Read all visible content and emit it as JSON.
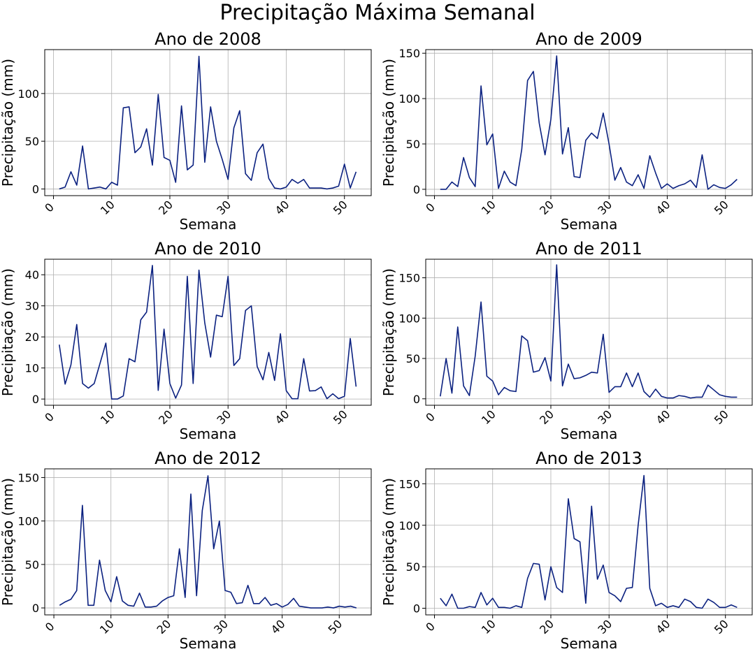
{
  "figure": {
    "title": "Precipitação Máxima Semanal"
  },
  "colors": {
    "line": "#0b2180",
    "grid": "#b0b0b0",
    "axes": "#000000"
  },
  "chart_data": [
    {
      "type": "line",
      "title": "Ano de 2008",
      "xlabel": "Semana",
      "ylabel": "Precipitação (mm)",
      "xlim": [
        -1.5,
        54.6
      ],
      "ylim": [
        -7,
        146
      ],
      "xticks": [
        0,
        10,
        20,
        30,
        40,
        50
      ],
      "yticks": [
        0,
        50,
        100
      ],
      "grid": true,
      "x": [
        1,
        2,
        3,
        4,
        5,
        6,
        7,
        8,
        9,
        10,
        11,
        12,
        13,
        14,
        15,
        16,
        17,
        18,
        19,
        20,
        21,
        22,
        23,
        24,
        25,
        26,
        27,
        28,
        29,
        30,
        31,
        32,
        33,
        34,
        35,
        36,
        37,
        38,
        39,
        40,
        41,
        42,
        43,
        44,
        45,
        46,
        47,
        48,
        49,
        50,
        51,
        52
      ],
      "values": [
        0,
        2,
        18,
        4,
        45,
        0,
        1,
        2,
        0,
        7,
        4,
        85,
        86,
        38,
        44,
        63,
        25,
        99,
        33,
        30,
        7,
        87,
        20,
        25,
        139,
        28,
        86,
        50,
        31,
        10,
        64,
        82,
        16,
        9,
        38,
        47,
        11,
        1,
        0,
        2,
        10,
        6,
        10,
        1,
        1,
        1,
        0,
        1,
        3,
        26,
        1,
        18
      ]
    },
    {
      "type": "line",
      "title": "Ano de 2009",
      "xlabel": "Semana",
      "ylabel": "Precipitação (mm)",
      "xlim": [
        -1.5,
        54.6
      ],
      "ylim": [
        -7,
        154
      ],
      "xticks": [
        0,
        10,
        20,
        30,
        40,
        50
      ],
      "yticks": [
        0,
        50,
        100,
        150
      ],
      "grid": true,
      "x": [
        1,
        2,
        3,
        4,
        5,
        6,
        7,
        8,
        9,
        10,
        11,
        12,
        13,
        14,
        15,
        16,
        17,
        18,
        19,
        20,
        21,
        22,
        23,
        24,
        25,
        26,
        27,
        28,
        29,
        30,
        31,
        32,
        33,
        34,
        35,
        36,
        37,
        38,
        39,
        40,
        41,
        42,
        43,
        44,
        45,
        46,
        47,
        48,
        49,
        50,
        51,
        52
      ],
      "values": [
        0,
        0,
        8,
        3,
        35,
        13,
        3,
        114,
        49,
        61,
        1,
        20,
        8,
        4,
        44,
        120,
        130,
        73,
        38,
        77,
        147,
        39,
        68,
        14,
        13,
        54,
        62,
        56,
        84,
        50,
        10,
        24,
        8,
        4,
        16,
        1,
        37,
        18,
        1,
        6,
        1,
        4,
        6,
        10,
        2,
        38,
        0,
        5,
        2,
        1,
        5,
        11
      ]
    },
    {
      "type": "line",
      "title": "Ano de 2010",
      "xlabel": "Semana",
      "ylabel": "Precipitação (mm)",
      "xlim": [
        -1.5,
        54.6
      ],
      "ylim": [
        -2,
        45
      ],
      "xticks": [
        0,
        10,
        20,
        30,
        40,
        50
      ],
      "yticks": [
        0,
        10,
        20,
        30,
        40
      ],
      "grid": true,
      "x": [
        1,
        2,
        3,
        4,
        5,
        6,
        7,
        8,
        9,
        10,
        11,
        12,
        13,
        14,
        15,
        16,
        17,
        18,
        19,
        20,
        21,
        22,
        23,
        24,
        25,
        26,
        27,
        28,
        29,
        30,
        31,
        32,
        33,
        34,
        35,
        36,
        37,
        38,
        39,
        40,
        41,
        42,
        43,
        44,
        45,
        46,
        47,
        48,
        49,
        50,
        51,
        52
      ],
      "values": [
        17.5,
        4.8,
        11,
        24,
        5,
        3.5,
        5,
        11.5,
        18,
        0,
        0,
        1,
        13,
        12,
        25.5,
        28,
        43,
        2.8,
        22.5,
        5,
        0.3,
        4.5,
        39.5,
        5,
        41.5,
        24.5,
        13.5,
        27,
        26.5,
        39.5,
        10.8,
        13,
        28.5,
        30,
        10.5,
        6.2,
        15,
        6,
        21,
        2.7,
        0.1,
        0.1,
        13,
        2.6,
        2.7,
        3.9,
        0.1,
        1.7,
        0.1,
        0.9,
        19.5,
        4
      ]
    },
    {
      "type": "line",
      "title": "Ano de 2011",
      "xlabel": "Semana",
      "ylabel": "Precipitação (mm)",
      "xlim": [
        -1.5,
        54.6
      ],
      "ylim": [
        -8,
        173
      ],
      "xticks": [
        0,
        10,
        20,
        30,
        40,
        50
      ],
      "yticks": [
        0,
        50,
        100,
        150
      ],
      "grid": true,
      "x": [
        1,
        2,
        3,
        4,
        5,
        6,
        7,
        8,
        9,
        10,
        11,
        12,
        13,
        14,
        15,
        16,
        17,
        18,
        19,
        20,
        21,
        22,
        23,
        24,
        25,
        26,
        27,
        28,
        29,
        30,
        31,
        32,
        33,
        34,
        35,
        36,
        37,
        38,
        39,
        40,
        41,
        42,
        43,
        44,
        45,
        46,
        47,
        48,
        49,
        50,
        51,
        52
      ],
      "values": [
        3,
        50,
        7,
        89,
        16,
        4,
        53,
        120,
        28,
        22,
        5,
        14,
        10,
        9,
        78,
        72,
        33,
        35,
        51,
        22,
        166,
        16,
        43,
        25,
        26,
        29,
        33,
        32,
        80,
        8,
        15,
        15,
        32,
        15,
        32,
        9,
        2,
        12,
        3,
        1,
        1,
        4,
        3,
        1,
        2,
        2,
        17,
        11,
        5,
        3,
        2,
        2
      ]
    },
    {
      "type": "line",
      "title": "Ano de 2012",
      "xlabel": "Semana",
      "ylabel": "Precipitação (mm)",
      "xlim": [
        -1.6,
        55.6
      ],
      "ylim": [
        -8,
        160
      ],
      "xticks": [
        0,
        10,
        20,
        30,
        40,
        50
      ],
      "yticks": [
        0,
        50,
        100,
        150
      ],
      "grid": true,
      "x": [
        1,
        2,
        3,
        4,
        5,
        6,
        7,
        8,
        9,
        10,
        11,
        12,
        13,
        14,
        15,
        16,
        17,
        18,
        19,
        20,
        21,
        22,
        23,
        24,
        25,
        26,
        27,
        28,
        29,
        30,
        31,
        32,
        33,
        34,
        35,
        36,
        37,
        38,
        39,
        40,
        41,
        42,
        43,
        44,
        45,
        46,
        47,
        48,
        49,
        50,
        51,
        52,
        53
      ],
      "values": [
        3,
        7,
        10,
        20,
        118,
        3,
        3,
        55,
        20,
        7,
        36,
        8,
        3,
        2,
        17,
        1,
        1,
        2,
        8,
        12,
        14,
        68,
        12,
        131,
        14,
        112,
        152,
        68,
        100,
        20,
        18,
        5,
        6,
        26,
        5,
        5,
        12,
        3,
        5,
        1,
        4,
        11,
        2,
        1,
        0,
        0,
        0,
        1,
        0,
        2,
        1,
        2,
        0
      ]
    },
    {
      "type": "line",
      "title": "Ano de 2013",
      "xlabel": "Semana",
      "ylabel": "Precipitação (mm)",
      "xlim": [
        -1.5,
        54.6
      ],
      "ylim": [
        -8,
        168
      ],
      "xticks": [
        0,
        10,
        20,
        30,
        40,
        50
      ],
      "yticks": [
        0,
        50,
        100,
        150
      ],
      "grid": true,
      "x": [
        1,
        2,
        3,
        4,
        5,
        6,
        7,
        8,
        9,
        10,
        11,
        12,
        13,
        14,
        15,
        16,
        17,
        18,
        19,
        20,
        21,
        22,
        23,
        24,
        25,
        26,
        27,
        28,
        29,
        30,
        31,
        32,
        33,
        34,
        35,
        36,
        37,
        38,
        39,
        40,
        41,
        42,
        43,
        44,
        45,
        46,
        47,
        48,
        49,
        50,
        51,
        52
      ],
      "values": [
        12,
        3,
        17,
        0,
        0,
        2,
        1,
        19,
        4,
        12,
        1,
        1,
        0,
        3,
        1,
        36,
        54,
        53,
        10,
        50,
        25,
        19,
        132,
        84,
        80,
        6,
        123,
        35,
        52,
        19,
        15,
        8,
        24,
        25,
        100,
        160,
        24,
        3,
        6,
        1,
        3,
        1,
        11,
        8,
        1,
        0,
        11,
        7,
        1,
        1,
        4,
        1
      ]
    }
  ]
}
